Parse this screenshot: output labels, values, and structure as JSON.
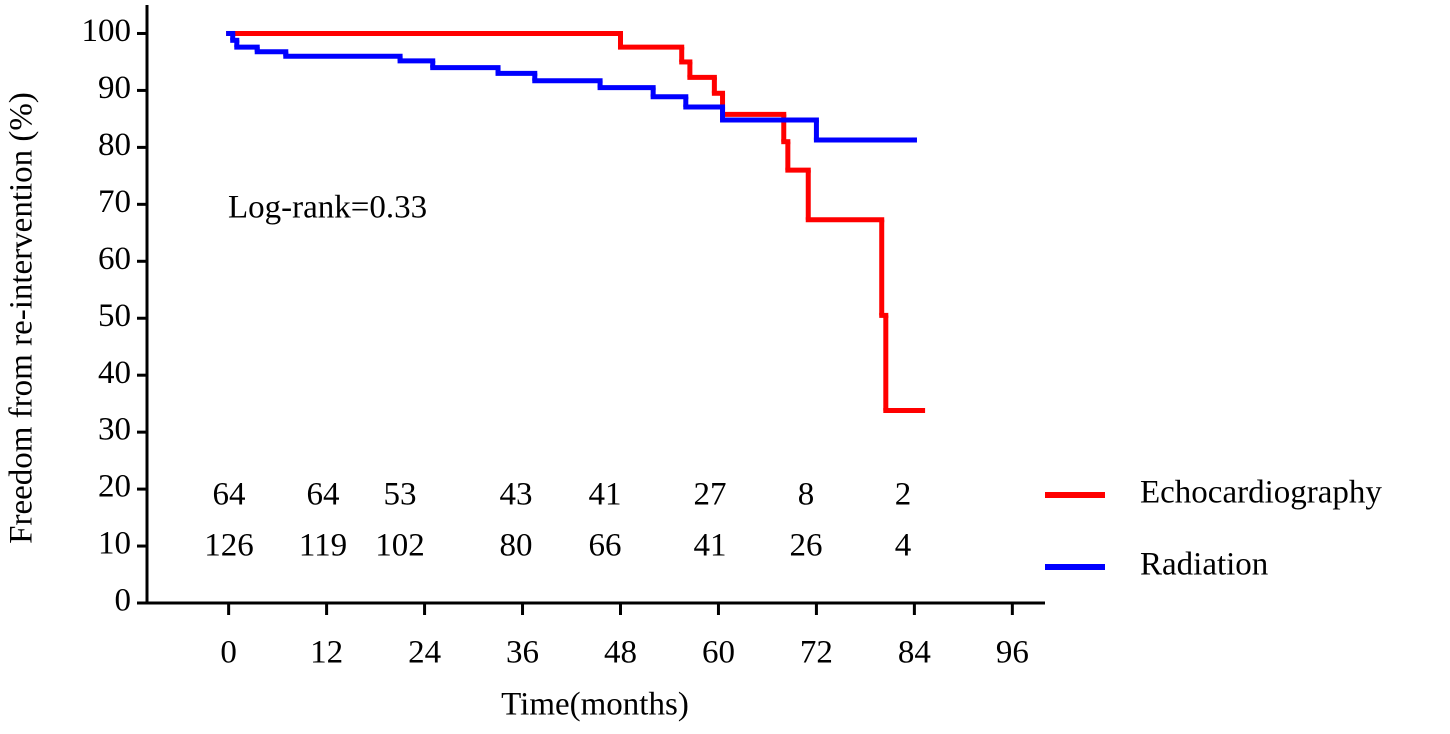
{
  "chart_data": {
    "type": "step",
    "annotation": "Log-rank=0.33",
    "xlabel": "Time(months)",
    "ylabel": "Freedom from re-intervention (%)",
    "xlim": [
      -10,
      100
    ],
    "ylim": [
      0,
      105
    ],
    "xticks": [
      0,
      12,
      24,
      36,
      48,
      60,
      72,
      84,
      96
    ],
    "yticks": [
      0,
      10,
      20,
      30,
      40,
      50,
      60,
      70,
      80,
      90,
      100
    ],
    "series": [
      {
        "name": "Echocardiography",
        "color": "#ff0000",
        "x": [
          0,
          48,
          55.5,
          56.5,
          59.5,
          60.5,
          68,
          68.5,
          71,
          80,
          80.5,
          85
        ],
        "values": [
          100,
          97.6,
          95,
          92.3,
          89.5,
          85.8,
          81,
          76,
          67.3,
          50.5,
          33.8,
          33.8
        ]
      },
      {
        "name": "Radiation",
        "color": "#0000ff",
        "x": [
          0,
          0.5,
          1,
          3.5,
          7,
          21,
          25,
          33,
          37.5,
          45.5,
          52,
          56,
          60.5,
          72,
          84
        ],
        "values": [
          100,
          98.8,
          97.6,
          96.8,
          96,
          95.2,
          94,
          93,
          91.7,
          90.5,
          88.9,
          87.1,
          84.8,
          81.3,
          81.3
        ]
      }
    ],
    "at_risk": [
      [
        64,
        64,
        53,
        43,
        41,
        27,
        8,
        2
      ],
      [
        126,
        119,
        102,
        80,
        66,
        41,
        26,
        4
      ]
    ]
  }
}
